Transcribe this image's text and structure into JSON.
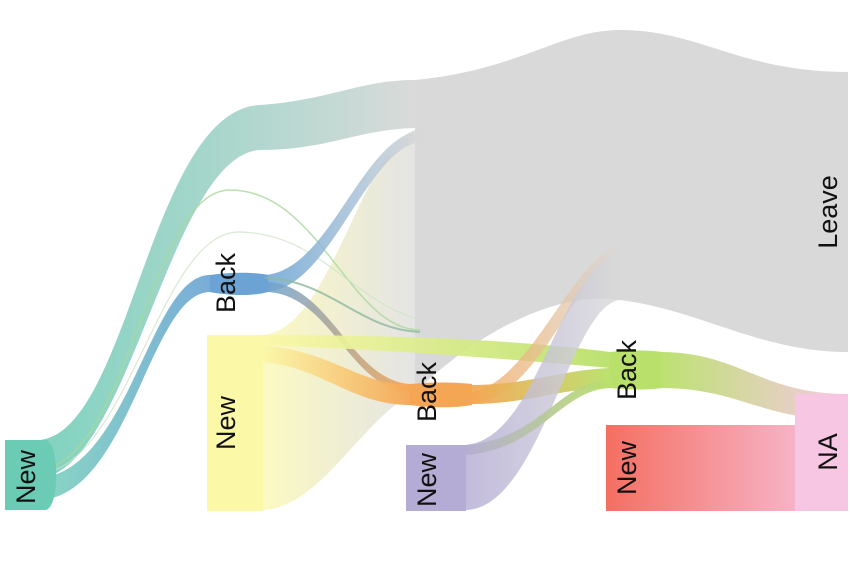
{
  "diagram": {
    "type": "sankey",
    "stages": [
      {
        "nodes": [
          {
            "label": "New",
            "color": "#6bcbb5"
          }
        ]
      },
      {
        "nodes": [
          {
            "label": "Back",
            "color": "#6aa3d4"
          },
          {
            "label": "New",
            "color": "#fbf8a8"
          }
        ]
      },
      {
        "nodes": [
          {
            "label": "Back",
            "color": "#f5a654"
          },
          {
            "label": "New",
            "color": "#b4acd4"
          }
        ]
      },
      {
        "nodes": [
          {
            "label": "Back",
            "color": "#b9e06a"
          },
          {
            "label": "New",
            "color": "#f56f62"
          }
        ]
      },
      {
        "nodes": [
          {
            "label": "Leave",
            "color": "#d9d9d9"
          },
          {
            "label": "NA",
            "color": "#f6c6e2"
          }
        ]
      }
    ],
    "colors": {
      "leave": "#d9d9d9",
      "na": "#f6c6e2",
      "new_1": "#6bcbb5",
      "back_2": "#6aa3d4",
      "new_2": "#fbf8a8",
      "back_3": "#f5a654",
      "new_3": "#b4acd4",
      "back_4": "#b9e06a",
      "new_4": "#f56f62"
    }
  }
}
